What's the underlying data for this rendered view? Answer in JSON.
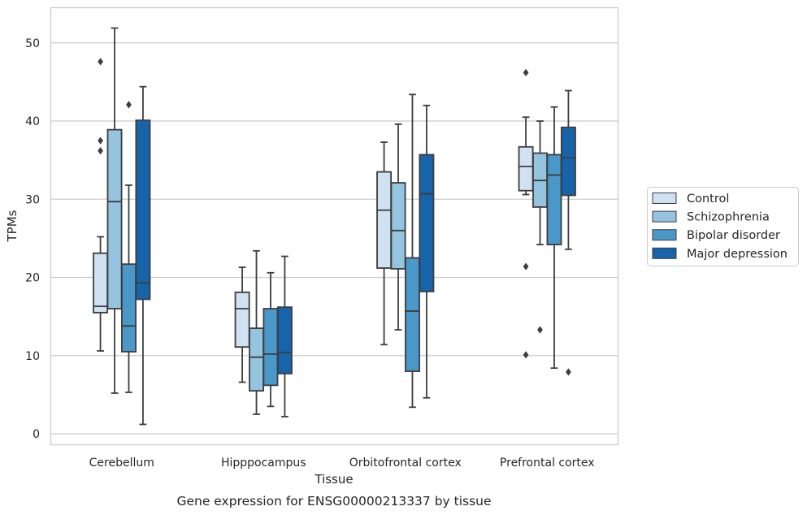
{
  "chart_data": {
    "type": "box",
    "title": "",
    "caption": "Gene expression for ENSG00000213337 by tissue",
    "xlabel": "Tissue",
    "ylabel": "TPMs",
    "ylim": [
      -1.4,
      54.5
    ],
    "yticks": [
      0,
      10,
      20,
      30,
      40,
      50
    ],
    "grid": "horizontal",
    "legend_position": "right",
    "categories": [
      "Cerebellum",
      "Hipppocampus",
      "Orbitofrontal cortex",
      "Prefrontal cortex"
    ],
    "series": [
      {
        "name": "Control",
        "color": "#d0e1f2",
        "boxes": [
          {
            "whislo": 10.6,
            "q1": 15.5,
            "med": 16.3,
            "q3": 23.1,
            "whishi": 25.2,
            "fliers": [
              47.6,
              37.5,
              36.2
            ]
          },
          {
            "whislo": 6.6,
            "q1": 11.1,
            "med": 16.0,
            "q3": 18.1,
            "whishi": 21.3,
            "fliers": []
          },
          {
            "whislo": 11.4,
            "q1": 21.2,
            "med": 28.6,
            "q3": 33.5,
            "whishi": 37.3,
            "fliers": []
          },
          {
            "whislo": 30.6,
            "q1": 31.1,
            "med": 34.2,
            "q3": 36.7,
            "whishi": 40.5,
            "fliers": [
              46.2,
              21.4,
              10.1
            ]
          }
        ]
      },
      {
        "name": "Schizophrenia",
        "color": "#94c4df",
        "boxes": [
          {
            "whislo": 5.2,
            "q1": 16.0,
            "med": 29.7,
            "q3": 38.9,
            "whishi": 51.9,
            "fliers": []
          },
          {
            "whislo": 2.5,
            "q1": 5.5,
            "med": 9.8,
            "q3": 13.5,
            "whishi": 23.4,
            "fliers": []
          },
          {
            "whislo": 13.3,
            "q1": 21.1,
            "med": 26.0,
            "q3": 32.1,
            "whishi": 39.6,
            "fliers": []
          },
          {
            "whislo": 24.2,
            "q1": 29.0,
            "med": 32.4,
            "q3": 35.9,
            "whishi": 40.0,
            "fliers": [
              13.3
            ]
          }
        ]
      },
      {
        "name": "Bipolar disorder",
        "color": "#4a98c9",
        "boxes": [
          {
            "whislo": 5.3,
            "q1": 10.5,
            "med": 13.8,
            "q3": 21.7,
            "whishi": 31.8,
            "fliers": [
              42.1
            ]
          },
          {
            "whislo": 3.5,
            "q1": 6.2,
            "med": 10.2,
            "q3": 16.0,
            "whishi": 20.6,
            "fliers": []
          },
          {
            "whislo": 3.4,
            "q1": 8.0,
            "med": 15.7,
            "q3": 22.5,
            "whishi": 43.4,
            "fliers": []
          },
          {
            "whislo": 8.4,
            "q1": 24.2,
            "med": 33.1,
            "q3": 35.7,
            "whishi": 41.8,
            "fliers": []
          }
        ]
      },
      {
        "name": "Major depression",
        "color": "#1764ab",
        "boxes": [
          {
            "whislo": 1.2,
            "q1": 17.2,
            "med": 19.3,
            "q3": 40.1,
            "whishi": 44.4,
            "fliers": []
          },
          {
            "whislo": 2.2,
            "q1": 7.7,
            "med": 10.4,
            "q3": 16.2,
            "whishi": 22.7,
            "fliers": []
          },
          {
            "whislo": 4.6,
            "q1": 18.2,
            "med": 30.7,
            "q3": 35.7,
            "whishi": 42.0,
            "fliers": []
          },
          {
            "whislo": 23.6,
            "q1": 30.5,
            "med": 35.3,
            "q3": 39.2,
            "whishi": 43.9,
            "fliers": [
              7.9
            ]
          }
        ]
      }
    ]
  }
}
